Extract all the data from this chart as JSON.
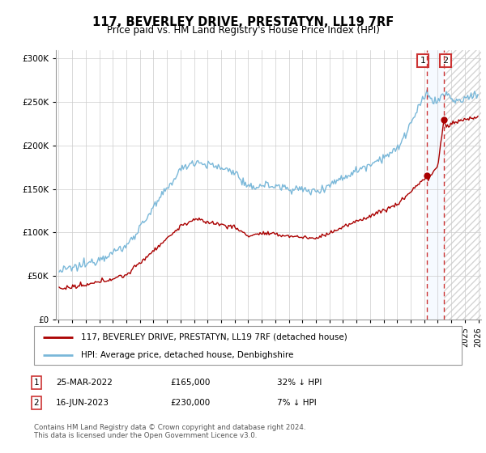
{
  "title": "117, BEVERLEY DRIVE, PRESTATYN, LL19 7RF",
  "subtitle": "Price paid vs. HM Land Registry's House Price Index (HPI)",
  "legend_line1": "117, BEVERLEY DRIVE, PRESTATYN, LL19 7RF (detached house)",
  "legend_line2": "HPI: Average price, detached house, Denbighshire",
  "footnote": "Contains HM Land Registry data © Crown copyright and database right 2024.\nThis data is licensed under the Open Government Licence v3.0.",
  "transaction1_date": "25-MAR-2022",
  "transaction1_price": "£165,000",
  "transaction1_hpi": "32% ↓ HPI",
  "transaction2_date": "16-JUN-2023",
  "transaction2_price": "£230,000",
  "transaction2_hpi": "7% ↓ HPI",
  "hpi_color": "#7ab8d9",
  "price_color": "#aa0000",
  "marker_color": "#aa0000",
  "vline_color": "#cc3333",
  "span_color": "#ddeeff",
  "hatch_color": "#cccccc",
  "ylim_max": 310000,
  "ylim_min": 0,
  "xstart_year": 1995,
  "xend_year": 2026,
  "t1": 2022.2,
  "t2": 2023.45,
  "p1_price": 165000,
  "p2_price": 230000
}
